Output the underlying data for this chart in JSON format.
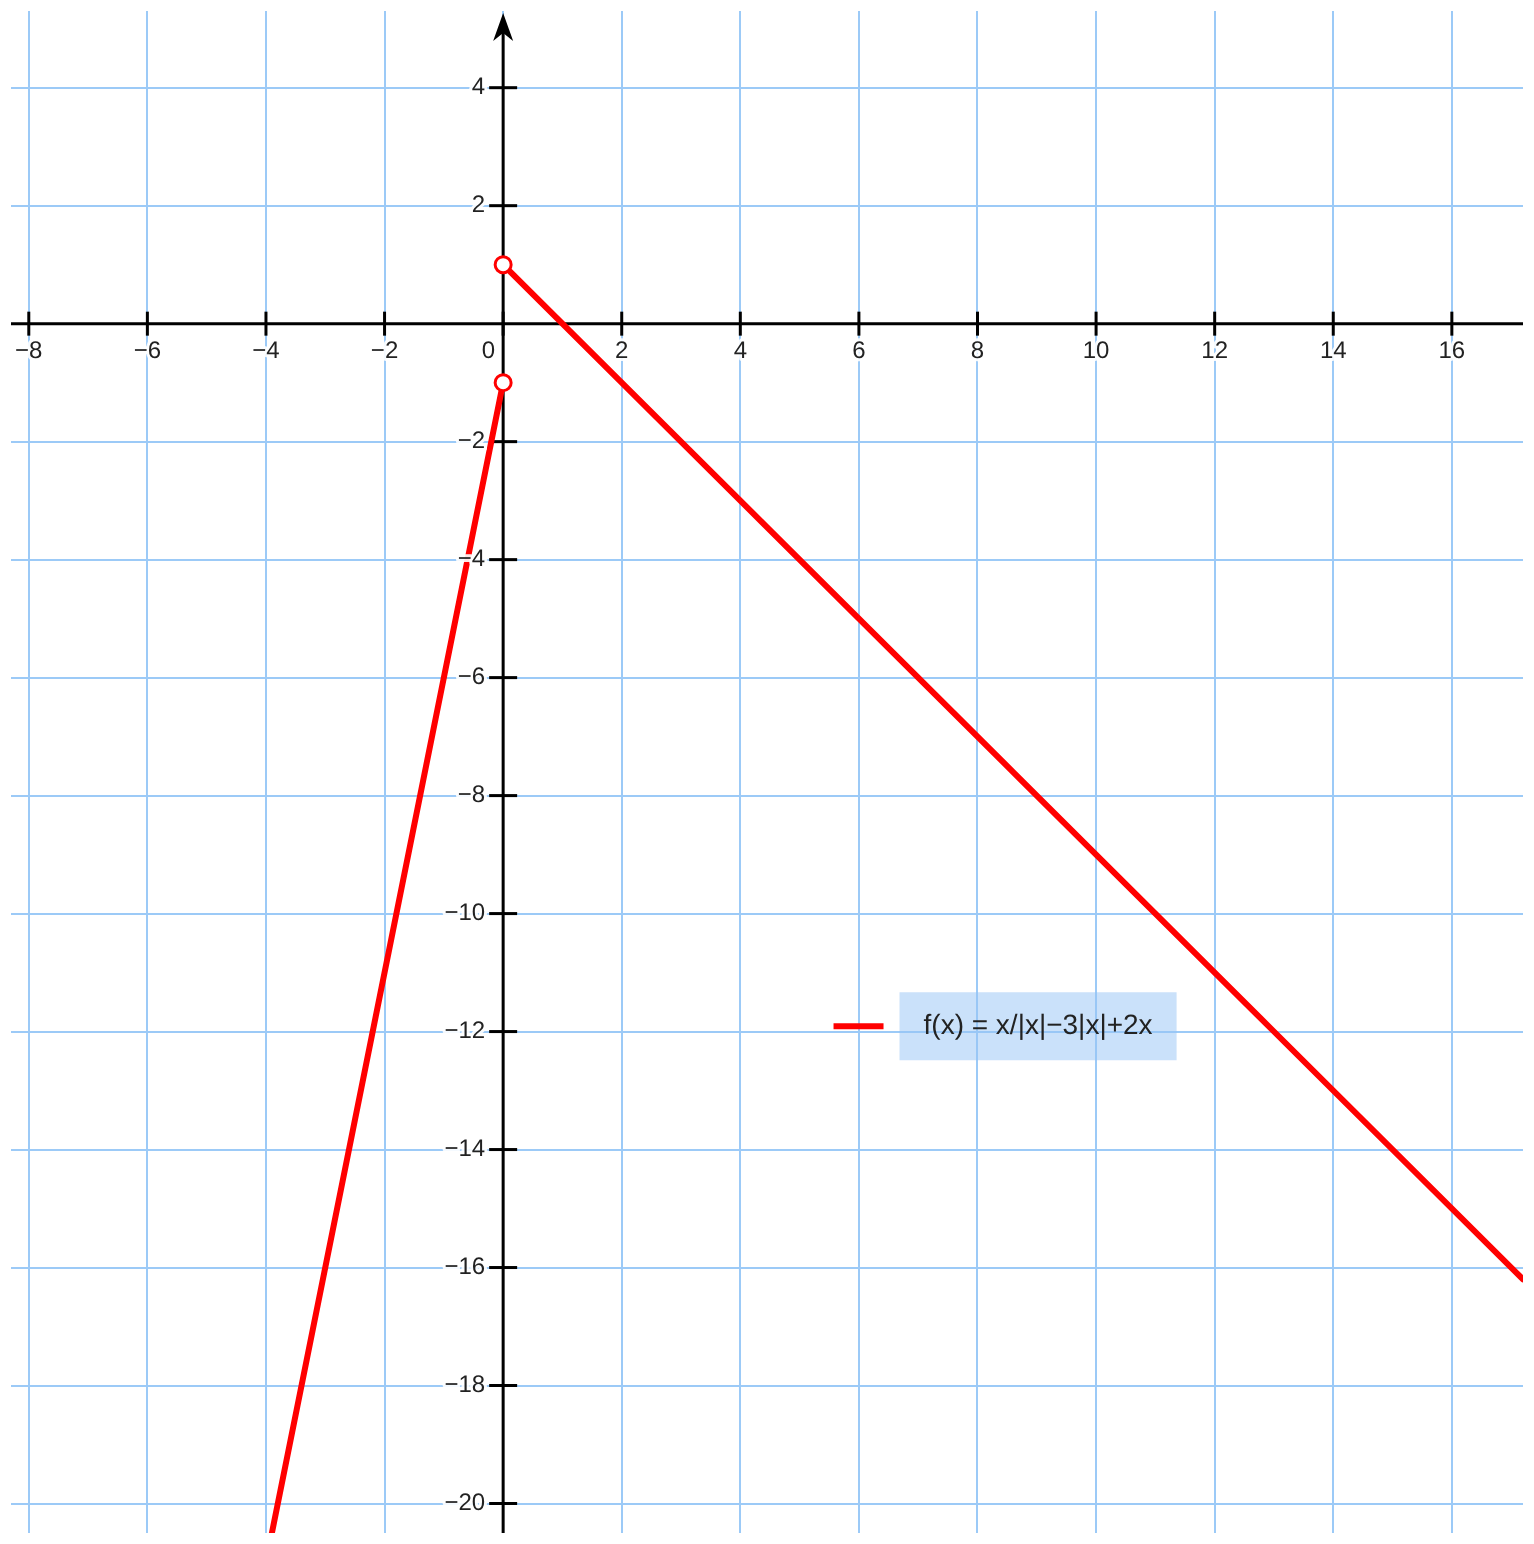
{
  "chart_data": {
    "type": "line",
    "xlim": [
      -8.3,
      17.2
    ],
    "ylim": [
      -20.5,
      5.3
    ],
    "xticks": [
      -8,
      -6,
      -4,
      -2,
      0,
      2,
      4,
      6,
      8,
      10,
      12,
      14,
      16
    ],
    "yticks": [
      4,
      2,
      -2,
      -4,
      -6,
      -8,
      -10,
      -12,
      -14,
      -16,
      -18,
      -20
    ],
    "grid": true,
    "legend": "right",
    "series": [
      {
        "name": "f(x) = x/|x|−3|x|+2x",
        "color": "#ff0000",
        "x": [
          -3.9,
          0
        ],
        "values": [
          -20.5,
          -1
        ]
      },
      {
        "color": "#ff0000",
        "x": [
          0,
          17.2
        ],
        "values": [
          1,
          -16.2
        ]
      },
      {
        "type": "scatter",
        "color": "#ff0000",
        "marker": "circle",
        "x": [
          0,
          0
        ],
        "values": [
          1,
          -1
        ]
      }
    ]
  }
}
